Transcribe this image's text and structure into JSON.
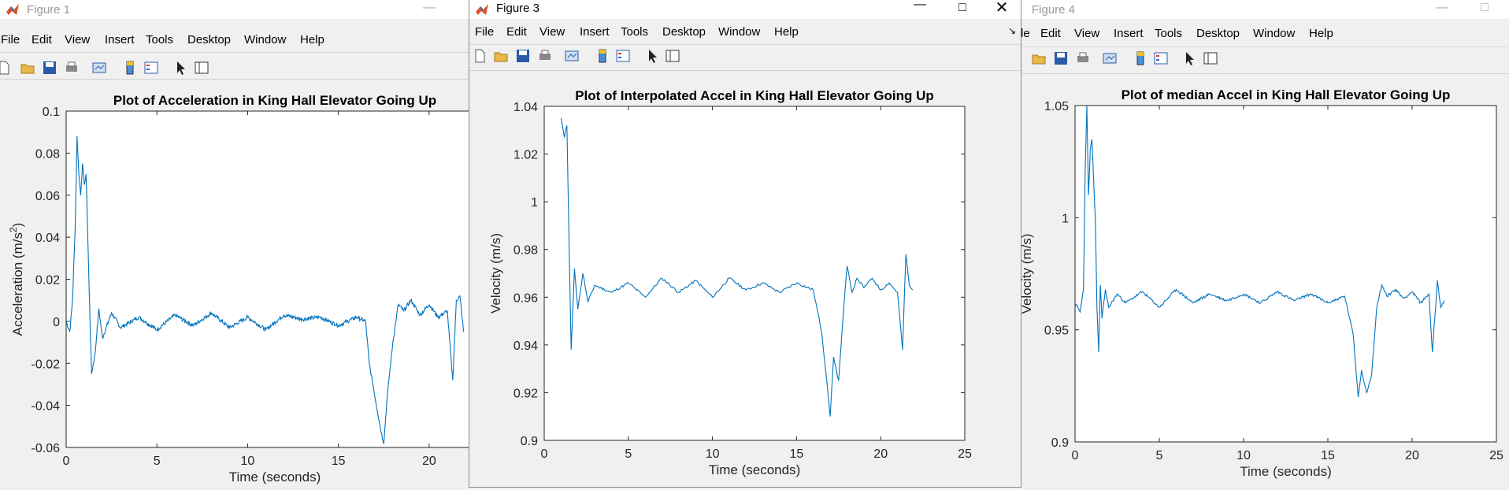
{
  "windows": {
    "fig1": {
      "title": "Figure 1",
      "menu": [
        "File",
        "Edit",
        "View",
        "Insert",
        "Tools",
        "Desktop",
        "Window",
        "Help"
      ]
    },
    "fig3": {
      "title": "Figure 3",
      "menu": [
        "File",
        "Edit",
        "View",
        "Insert",
        "Tools",
        "Desktop",
        "Window",
        "Help"
      ]
    },
    "fig4": {
      "title": "Figure 4",
      "menu": [
        "le",
        "Edit",
        "View",
        "Insert",
        "Tools",
        "Desktop",
        "Window",
        "Help"
      ]
    }
  },
  "colors": {
    "line": "#0072bd",
    "bg": "#f0f0f0",
    "axes_bg": "#ffffff"
  },
  "chart_data": [
    {
      "type": "line",
      "title": "Plot of Acceleration in King Hall Elevator Going Up",
      "xlabel": "Time (seconds)",
      "ylabel": "Acceleration (m/s",
      "ylabel_sup": "2",
      "ylabel_close": ")",
      "xlim": [
        0,
        23
      ],
      "ylim": [
        -0.06,
        0.1
      ],
      "xticks": [
        "0",
        "5",
        "10",
        "15",
        "20"
      ],
      "xtick_values": [
        0,
        5,
        10,
        15,
        20
      ],
      "yticks": [
        "0.1",
        "0.08",
        "0.06",
        "0.04",
        "0.02",
        "0",
        "-0.02",
        "-0.04",
        "-0.06"
      ],
      "ytick_values": [
        0.1,
        0.08,
        0.06,
        0.04,
        0.02,
        0,
        -0.02,
        -0.04,
        -0.06
      ],
      "series": [
        {
          "name": "acceleration",
          "x": [
            0.0,
            0.2,
            0.35,
            0.5,
            0.6,
            0.7,
            0.8,
            0.9,
            1.0,
            1.1,
            1.3,
            1.4,
            1.6,
            1.8,
            2.0,
            2.5,
            3,
            4,
            5,
            6,
            7,
            8,
            9,
            10,
            11,
            12,
            13,
            14,
            15,
            16,
            16.5,
            16.7,
            17.0,
            17.3,
            17.5,
            17.7,
            18.0,
            18.3,
            18.6,
            19,
            19.5,
            20,
            20.5,
            21,
            21.3,
            21.5,
            21.7,
            21.9
          ],
          "y": [
            0.0,
            -0.005,
            0.01,
            0.045,
            0.088,
            0.07,
            0.06,
            0.075,
            0.065,
            0.07,
            0.005,
            -0.025,
            -0.015,
            0.006,
            -0.008,
            0.004,
            -0.003,
            0.002,
            -0.004,
            0.003,
            -0.002,
            0.004,
            -0.003,
            0.002,
            -0.004,
            0.003,
            0.001,
            0.002,
            -0.002,
            0.002,
            0.0,
            -0.02,
            -0.035,
            -0.05,
            -0.058,
            -0.035,
            -0.01,
            0.008,
            0.005,
            0.01,
            0.003,
            0.008,
            0.002,
            0.005,
            -0.028,
            0.01,
            0.012,
            -0.005
          ]
        }
      ]
    },
    {
      "type": "line",
      "title": "Plot of Interpolated Accel in King Hall Elevator Going Up",
      "xlabel": "Time (seconds)",
      "ylabel": "Velocity (m/s)",
      "xlim": [
        0,
        25
      ],
      "ylim": [
        0.9,
        1.04
      ],
      "xticks": [
        "0",
        "5",
        "10",
        "15",
        "20",
        "25"
      ],
      "xtick_values": [
        0,
        5,
        10,
        15,
        20,
        25
      ],
      "yticks": [
        "1.04",
        "1.02",
        "1",
        "0.98",
        "0.96",
        "0.94",
        "0.92",
        "0.9"
      ],
      "ytick_values": [
        1.04,
        1.02,
        1.0,
        0.98,
        0.96,
        0.94,
        0.92,
        0.9
      ],
      "series": [
        {
          "name": "velocity",
          "x": [
            1.0,
            1.2,
            1.35,
            1.5,
            1.6,
            1.8,
            2.0,
            2.3,
            2.6,
            3,
            4,
            5,
            6,
            7,
            8,
            9,
            10,
            11,
            12,
            13,
            14,
            15,
            16,
            16.5,
            16.8,
            17.0,
            17.2,
            17.5,
            17.8,
            18.0,
            18.3,
            18.6,
            19,
            19.5,
            20,
            20.5,
            21,
            21.3,
            21.5,
            21.7,
            21.9
          ],
          "y": [
            1.035,
            1.027,
            1.032,
            0.975,
            0.938,
            0.972,
            0.955,
            0.97,
            0.958,
            0.965,
            0.962,
            0.966,
            0.96,
            0.968,
            0.962,
            0.967,
            0.96,
            0.968,
            0.963,
            0.966,
            0.962,
            0.966,
            0.963,
            0.945,
            0.925,
            0.91,
            0.935,
            0.925,
            0.955,
            0.973,
            0.962,
            0.968,
            0.964,
            0.968,
            0.963,
            0.966,
            0.962,
            0.938,
            0.978,
            0.965,
            0.963
          ]
        }
      ]
    },
    {
      "type": "line",
      "title": "Plot of median Accel in King Hall Elevator Going Up",
      "xlabel": "Time (seconds)",
      "ylabel": "Velocity (m/s)",
      "xlim": [
        0,
        25
      ],
      "ylim": [
        0.9,
        1.05
      ],
      "xticks": [
        "0",
        "5",
        "10",
        "15",
        "20",
        "25"
      ],
      "xtick_values": [
        0,
        5,
        10,
        15,
        20,
        25
      ],
      "yticks": [
        "1.05",
        "1",
        "0.95",
        "0.9"
      ],
      "ytick_values": [
        1.05,
        1.0,
        0.95,
        0.9
      ],
      "series": [
        {
          "name": "velocity",
          "x": [
            0.0,
            0.3,
            0.5,
            0.6,
            0.7,
            0.8,
            0.9,
            1.0,
            1.2,
            1.3,
            1.4,
            1.5,
            1.6,
            1.8,
            2.0,
            2.5,
            3,
            4,
            5,
            6,
            7,
            8,
            9,
            10,
            11,
            12,
            13,
            14,
            15,
            16,
            16.5,
            16.8,
            17.0,
            17.3,
            17.6,
            17.9,
            18.2,
            18.5,
            19,
            19.5,
            20,
            20.5,
            21,
            21.2,
            21.5,
            21.7,
            21.9
          ],
          "y": [
            0.962,
            0.958,
            0.968,
            1.02,
            1.05,
            1.01,
            1.03,
            1.035,
            1.0,
            0.96,
            0.94,
            0.97,
            0.955,
            0.968,
            0.96,
            0.966,
            0.962,
            0.967,
            0.96,
            0.968,
            0.962,
            0.966,
            0.963,
            0.966,
            0.962,
            0.967,
            0.963,
            0.966,
            0.962,
            0.965,
            0.948,
            0.92,
            0.932,
            0.922,
            0.93,
            0.96,
            0.97,
            0.965,
            0.968,
            0.964,
            0.967,
            0.962,
            0.966,
            0.94,
            0.972,
            0.96,
            0.963
          ]
        }
      ]
    }
  ],
  "covered_text": "Plot of Acceleration in King Hall Elevator Going Up"
}
